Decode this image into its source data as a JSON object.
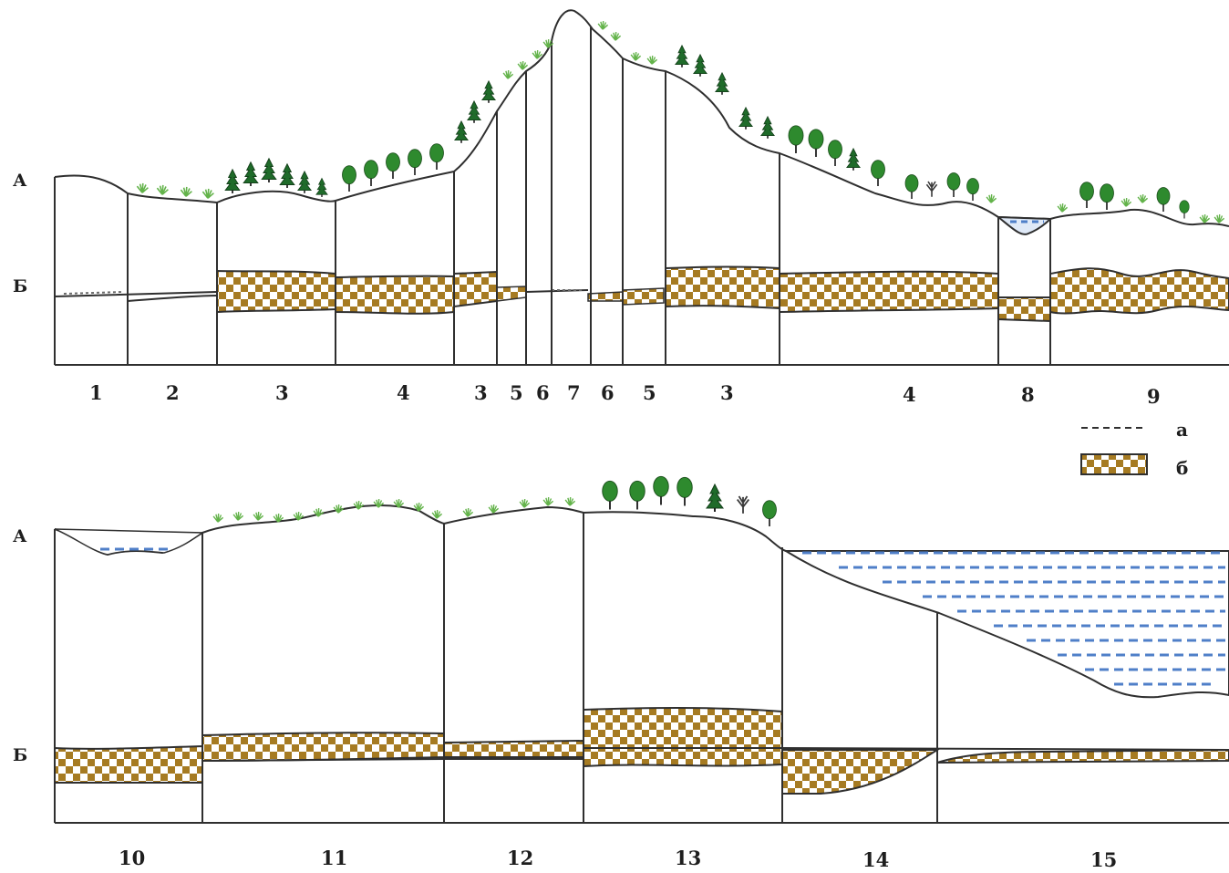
{
  "colors": {
    "layer_brown": "#a67b22",
    "layer_light": "#ffffff",
    "line": "#2f2f2f",
    "water": "#4f7fc8",
    "vegetation": "#2e8a2e",
    "grass": "#63b34a"
  },
  "top_profile": {
    "label_a": "А",
    "label_b": "Б",
    "zones": [
      "1",
      "2",
      "3",
      "4",
      "3",
      "5",
      "6",
      "7",
      "6",
      "5",
      "3",
      "4",
      "8",
      "9"
    ]
  },
  "bottom_profile": {
    "label_a": "А",
    "label_b": "Б",
    "zones": [
      "10",
      "11",
      "12",
      "13",
      "14",
      "15"
    ]
  },
  "legend": [
    {
      "key": "а",
      "symbol": "dashed-line"
    },
    {
      "key": "б",
      "symbol": "checkered-layer"
    }
  ],
  "icons": [
    "conifer-tree-icon",
    "deciduous-tree-icon",
    "grass-tuft-icon",
    "dry-shrub-icon"
  ]
}
